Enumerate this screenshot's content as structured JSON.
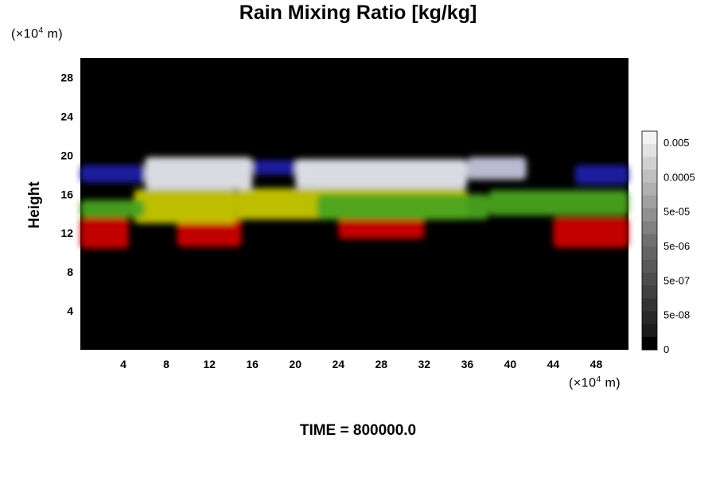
{
  "title": "Rain Mixing Ratio [kg/kg]",
  "time_label": "TIME = 800000.0",
  "y_unit": {
    "prefix": "(×10",
    "exp": "4",
    "suffix": " m)"
  },
  "x_unit": {
    "prefix": "(×10",
    "exp": "4",
    "suffix": " m)"
  },
  "chart_data": {
    "type": "heatmap",
    "title": "Rain Mixing Ratio [kg/kg]",
    "xlabel": "",
    "ylabel": "Height",
    "xlim": [
      0,
      51
    ],
    "ylim": [
      0,
      30
    ],
    "x_ticks": [
      4,
      8,
      12,
      16,
      20,
      24,
      28,
      32,
      36,
      40,
      44,
      48
    ],
    "y_ticks": [
      4,
      8,
      12,
      16,
      20,
      24,
      28
    ],
    "background": "#000000",
    "bands": [
      {
        "color": "#cc0000",
        "segments": [
          [
            0,
            4.5,
            10.4,
            13.6
          ],
          [
            9,
            15,
            10.6,
            13.6
          ],
          [
            24,
            32,
            11.4,
            13.6
          ],
          [
            44,
            51,
            10.5,
            13.6
          ]
        ]
      },
      {
        "color": "#c8c800",
        "segments": [
          [
            5,
            14.5,
            13.0,
            16.5
          ],
          [
            14.5,
            36,
            13.4,
            16.6
          ]
        ]
      },
      {
        "color": "#4aa41e",
        "segments": [
          [
            0,
            6,
            13.6,
            15.4
          ],
          [
            22,
            38,
            13.4,
            16.0
          ],
          [
            38,
            51,
            13.8,
            16.4
          ]
        ]
      },
      {
        "color": "#2020a8",
        "segments": [
          [
            0,
            6,
            17.2,
            19.0
          ],
          [
            46,
            51,
            17.0,
            19.0
          ],
          [
            16,
            21,
            18.0,
            19.5
          ]
        ]
      },
      {
        "color": "#e6e6ee",
        "segments": [
          [
            6,
            16,
            16.5,
            19.8
          ],
          [
            20,
            36,
            16.6,
            19.6
          ]
        ]
      },
      {
        "color": "#c4c4dc",
        "segments": [
          [
            36,
            41.5,
            17.5,
            19.8
          ]
        ]
      }
    ],
    "colorbar": {
      "labels": [
        "0.005",
        "0.0005",
        "5e-05",
        "5e-06",
        "5e-07",
        "5e-08",
        "0"
      ],
      "shades": [
        "#f2f2f2",
        "#e2e2e2",
        "#d0d0d0",
        "#c0c0c0",
        "#b0b0b0",
        "#a0a0a0",
        "#909090",
        "#808080",
        "#707070",
        "#646464",
        "#585858",
        "#4c4c4c",
        "#404040",
        "#343434",
        "#282828",
        "#1c1c1c",
        "#000000"
      ]
    }
  }
}
